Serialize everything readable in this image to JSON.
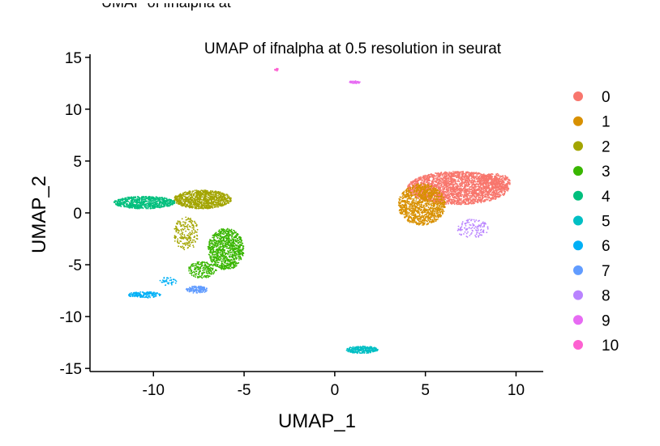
{
  "ghost_title": "UMAP of ifnalpha at",
  "chart_data": {
    "type": "scatter",
    "title": "UMAP of ifnalpha at 0.5 resolution in seurat",
    "xlabel": "UMAP_1",
    "ylabel": "UMAP_2",
    "xlim": [
      -13.5,
      11.5
    ],
    "ylim": [
      -15.3,
      15.3
    ],
    "xticks": [
      -10,
      -5,
      0,
      5,
      10
    ],
    "yticks": [
      -15,
      -10,
      -5,
      0,
      5,
      10,
      15
    ],
    "xtick_labels": [
      "-10",
      "-5",
      "0",
      "5",
      "10"
    ],
    "ytick_labels": [
      "-15",
      "-10",
      "-5",
      "0",
      "5",
      "10",
      "15"
    ],
    "legend_position": "right",
    "grid": false,
    "series": [
      {
        "name": "0",
        "color": "#F8766D",
        "clusters": [
          {
            "cx": 6.8,
            "cy": 2.4,
            "rx": 2.8,
            "ry": 1.6,
            "n": 2600
          },
          {
            "cx": 8.8,
            "cy": 3.0,
            "rx": 0.9,
            "ry": 0.8,
            "n": 300
          }
        ]
      },
      {
        "name": "1",
        "color": "#D89000",
        "clusters": [
          {
            "cx": 4.8,
            "cy": 0.8,
            "rx": 1.3,
            "ry": 2.0,
            "n": 1200
          }
        ]
      },
      {
        "name": "2",
        "color": "#A3A500",
        "clusters": [
          {
            "cx": -7.3,
            "cy": 1.3,
            "rx": 1.6,
            "ry": 0.9,
            "n": 1000
          },
          {
            "cx": -8.2,
            "cy": -2.0,
            "rx": 0.7,
            "ry": 1.6,
            "n": 200
          }
        ]
      },
      {
        "name": "3",
        "color": "#39B600",
        "clusters": [
          {
            "cx": -6.0,
            "cy": -3.5,
            "rx": 1.0,
            "ry": 2.0,
            "n": 900
          },
          {
            "cx": -7.3,
            "cy": -5.5,
            "rx": 0.8,
            "ry": 0.8,
            "n": 200
          }
        ]
      },
      {
        "name": "4",
        "color": "#00BF7D",
        "clusters": [
          {
            "cx": -10.5,
            "cy": 1.0,
            "rx": 1.7,
            "ry": 0.6,
            "n": 700
          }
        ]
      },
      {
        "name": "5",
        "color": "#00BFC4",
        "clusters": [
          {
            "cx": 1.5,
            "cy": -13.2,
            "rx": 0.9,
            "ry": 0.35,
            "n": 260
          }
        ]
      },
      {
        "name": "6",
        "color": "#00B0F6",
        "clusters": [
          {
            "cx": -10.5,
            "cy": -7.9,
            "rx": 0.9,
            "ry": 0.3,
            "n": 160
          },
          {
            "cx": -9.2,
            "cy": -6.6,
            "rx": 0.5,
            "ry": 0.4,
            "n": 40
          }
        ]
      },
      {
        "name": "7",
        "color": "#619CFF",
        "clusters": [
          {
            "cx": -7.6,
            "cy": -7.4,
            "rx": 0.6,
            "ry": 0.35,
            "n": 140
          }
        ]
      },
      {
        "name": "8",
        "color": "#B983FF",
        "clusters": [
          {
            "cx": 7.6,
            "cy": -1.5,
            "rx": 0.9,
            "ry": 0.9,
            "n": 120
          }
        ]
      },
      {
        "name": "9",
        "color": "#E76BF3",
        "clusters": [
          {
            "cx": 1.1,
            "cy": 12.6,
            "rx": 0.3,
            "ry": 0.15,
            "n": 40
          }
        ]
      },
      {
        "name": "10",
        "color": "#FD61D1",
        "clusters": [
          {
            "cx": -3.2,
            "cy": 13.8,
            "rx": 0.12,
            "ry": 0.12,
            "n": 20
          }
        ]
      }
    ]
  }
}
